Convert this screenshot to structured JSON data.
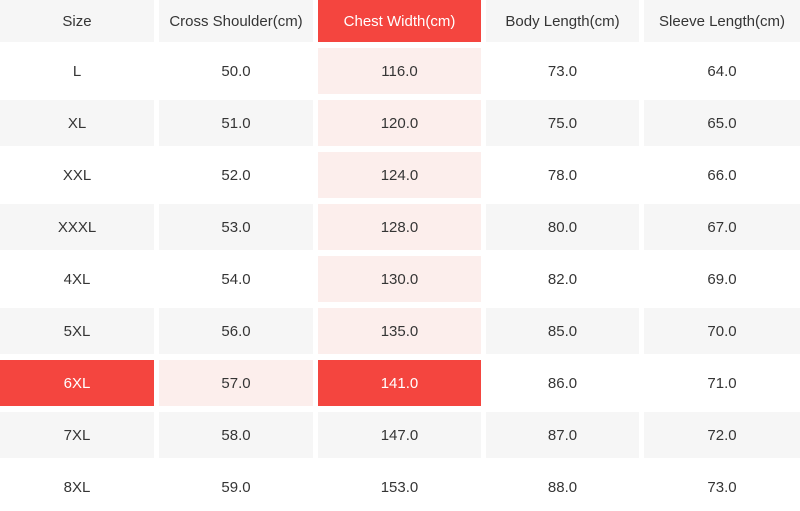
{
  "colors": {
    "accent_red": "#f4453f",
    "highlight_pink": "#fceeec",
    "row_alt_gray": "#f6f6f6",
    "row_white": "#ffffff",
    "text_dark": "#353535",
    "text_on_red": "#ffffff"
  },
  "table": {
    "columns": [
      "Size",
      "Cross Shoulder(cm)",
      "Chest Width(cm)",
      "Body Length(cm)",
      "Sleeve Length(cm)"
    ],
    "rows": [
      [
        "L",
        "50.0",
        "116.0",
        "73.0",
        "64.0"
      ],
      [
        "XL",
        "51.0",
        "120.0",
        "75.0",
        "65.0"
      ],
      [
        "XXL",
        "52.0",
        "124.0",
        "78.0",
        "66.0"
      ],
      [
        "XXXL",
        "53.0",
        "128.0",
        "80.0",
        "67.0"
      ],
      [
        "4XL",
        "54.0",
        "130.0",
        "82.0",
        "69.0"
      ],
      [
        "5XL",
        "56.0",
        "135.0",
        "85.0",
        "70.0"
      ],
      [
        "6XL",
        "57.0",
        "141.0",
        "86.0",
        "71.0"
      ],
      [
        "7XL",
        "58.0",
        "147.0",
        "87.0",
        "72.0"
      ],
      [
        "8XL",
        "59.0",
        "153.0",
        "88.0",
        "73.0"
      ]
    ],
    "selected_column_index": 2,
    "selected_row_index": 6,
    "selected_column_label": "Chest Width(cm)",
    "selected_size": "6XL",
    "selected_value": "141.0"
  },
  "chart_data": {
    "type": "table",
    "title": "",
    "columns": [
      "Size",
      "Cross Shoulder(cm)",
      "Chest Width(cm)",
      "Body Length(cm)",
      "Sleeve Length(cm)"
    ],
    "rows": [
      [
        "L",
        50.0,
        116.0,
        73.0,
        64.0
      ],
      [
        "XL",
        51.0,
        120.0,
        75.0,
        65.0
      ],
      [
        "XXL",
        52.0,
        124.0,
        78.0,
        66.0
      ],
      [
        "XXXL",
        53.0,
        128.0,
        80.0,
        67.0
      ],
      [
        "4XL",
        54.0,
        130.0,
        82.0,
        69.0
      ],
      [
        "5XL",
        56.0,
        135.0,
        85.0,
        70.0
      ],
      [
        "6XL",
        57.0,
        141.0,
        86.0,
        71.0
      ],
      [
        "7XL",
        58.0,
        147.0,
        87.0,
        72.0
      ],
      [
        "8XL",
        59.0,
        153.0,
        88.0,
        73.0
      ]
    ],
    "highlighted_column": "Chest Width(cm)",
    "highlighted_row": "6XL",
    "highlighted_cell_value": 141.0
  }
}
